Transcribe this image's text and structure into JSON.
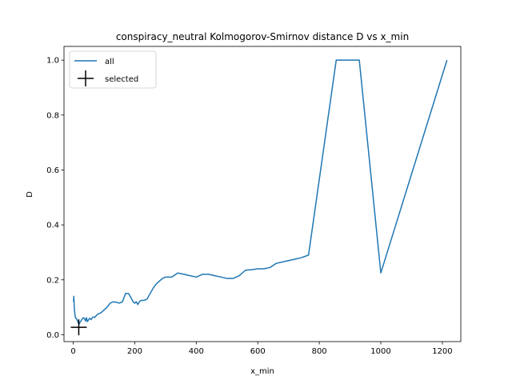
{
  "chart_data": {
    "type": "line",
    "title": "conspiracy_neutral Kolmogorov-Smirnov distance D vs x_min",
    "xlabel": "x_min",
    "ylabel": "D",
    "xlim": [
      -30,
      1260
    ],
    "ylim": [
      -0.025,
      1.05
    ],
    "xticks": [
      0,
      200,
      400,
      600,
      800,
      1000,
      1200
    ],
    "yticks": [
      0.0,
      0.2,
      0.4,
      0.6,
      0.8,
      1.0
    ],
    "xtick_labels": [
      "0",
      "200",
      "400",
      "600",
      "800",
      "1000",
      "1200"
    ],
    "ytick_labels": [
      "0.0",
      "0.2",
      "0.4",
      "0.6",
      "0.8",
      "1.0"
    ],
    "grid": false,
    "legend": "upper-left",
    "series": [
      {
        "name": "all",
        "color": "#1f77b4",
        "marker": "line",
        "x": [
          1,
          2,
          3,
          4,
          5,
          6,
          7,
          8,
          10,
          12,
          14,
          16,
          18,
          20,
          22,
          25,
          28,
          31,
          34,
          37,
          40,
          43,
          46,
          50,
          54,
          58,
          62,
          66,
          70,
          75,
          80,
          90,
          100,
          110,
          120,
          130,
          140,
          150,
          160,
          170,
          180,
          185,
          190,
          195,
          200,
          205,
          210,
          215,
          220,
          230,
          240,
          250,
          260,
          270,
          280,
          290,
          300,
          320,
          340,
          360,
          380,
          400,
          420,
          440,
          460,
          480,
          500,
          520,
          540,
          560,
          580,
          600,
          620,
          640,
          660,
          680,
          700,
          720,
          740,
          765,
          855,
          930,
          1000,
          1215
        ],
        "y": [
          0.12,
          0.14,
          0.11,
          0.09,
          0.08,
          0.07,
          0.065,
          0.06,
          0.06,
          0.055,
          0.05,
          0.045,
          0.04,
          0.04,
          0.045,
          0.05,
          0.055,
          0.06,
          0.062,
          0.058,
          0.05,
          0.062,
          0.048,
          0.055,
          0.06,
          0.055,
          0.062,
          0.065,
          0.063,
          0.07,
          0.075,
          0.08,
          0.09,
          0.1,
          0.115,
          0.12,
          0.118,
          0.115,
          0.12,
          0.15,
          0.15,
          0.14,
          0.13,
          0.12,
          0.115,
          0.12,
          0.11,
          0.12,
          0.125,
          0.125,
          0.13,
          0.15,
          0.17,
          0.185,
          0.195,
          0.205,
          0.21,
          0.21,
          0.225,
          0.22,
          0.215,
          0.21,
          0.22,
          0.22,
          0.215,
          0.21,
          0.205,
          0.205,
          0.215,
          0.235,
          0.237,
          0.24,
          0.24,
          0.245,
          0.26,
          0.265,
          0.27,
          0.275,
          0.28,
          0.29,
          1.0,
          1.0,
          0.225,
          1.0
        ]
      },
      {
        "name": "selected",
        "color": "#000000",
        "marker": "+",
        "x": [
          18
        ],
        "y": [
          0.027
        ]
      }
    ]
  }
}
